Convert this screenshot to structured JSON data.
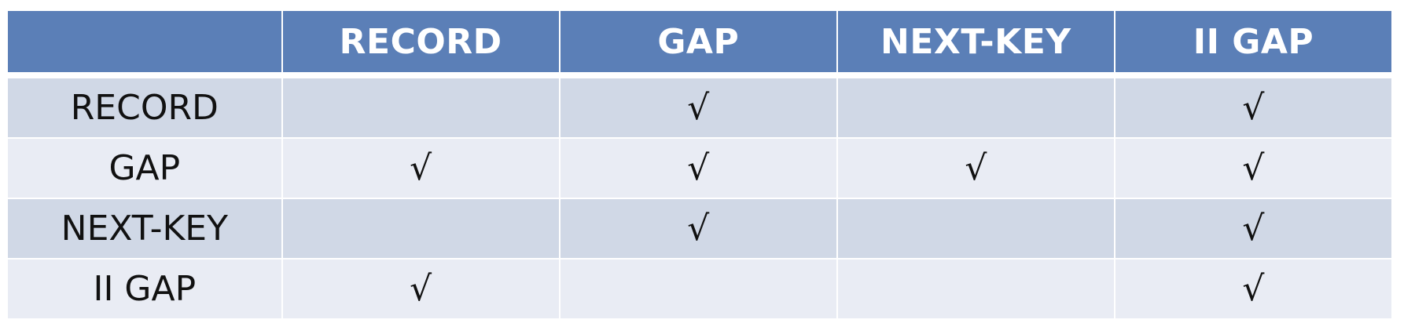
{
  "table": {
    "columns": [
      "",
      "RECORD",
      "GAP",
      "NEXT-KEY",
      "II GAP"
    ],
    "rows": [
      {
        "label": "RECORD",
        "cells": [
          "",
          "√",
          "",
          "√"
        ]
      },
      {
        "label": "GAP",
        "cells": [
          "√",
          "√",
          "√",
          "√"
        ]
      },
      {
        "label": "NEXT-KEY",
        "cells": [
          "",
          "√",
          "",
          "√"
        ]
      },
      {
        "label": "II GAP",
        "cells": [
          "√",
          "",
          "",
          "√"
        ]
      }
    ]
  },
  "colors": {
    "header": "#5b7fb7",
    "row_dark": "#d0d8e6",
    "row_light": "#e9ecf4"
  }
}
